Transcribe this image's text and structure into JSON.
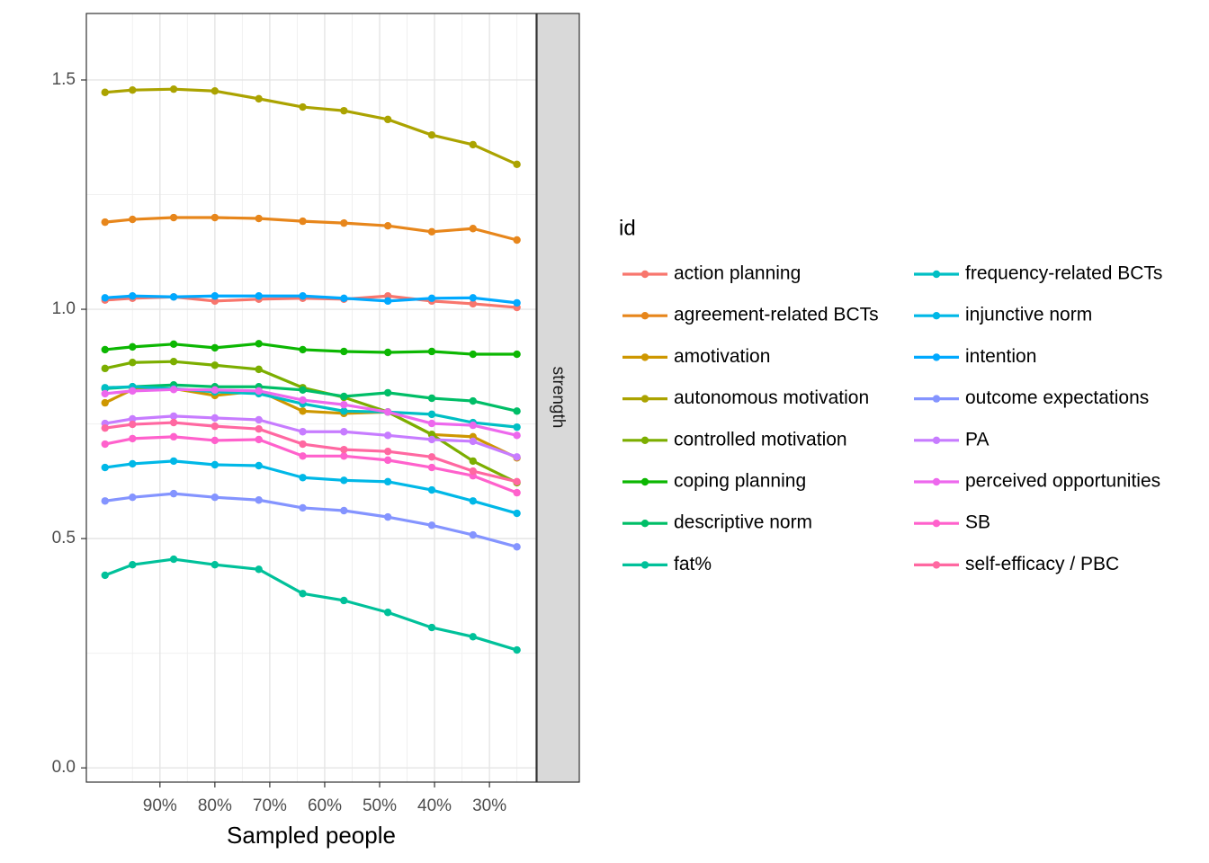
{
  "chart_data": {
    "type": "line",
    "xlabel": "Sampled people",
    "strip": "strength",
    "legend_title": "id",
    "x": [
      100,
      95,
      87.5,
      80,
      72,
      64,
      56.5,
      48.5,
      40.5,
      33,
      25
    ],
    "xlim": [
      103.4,
      21.5
    ],
    "xticks": [
      {
        "value": 90,
        "label": "90%"
      },
      {
        "value": 80,
        "label": "80%"
      },
      {
        "value": 70,
        "label": "70%"
      },
      {
        "value": 60,
        "label": "60%"
      },
      {
        "value": 50,
        "label": "50%"
      },
      {
        "value": 40,
        "label": "40%"
      },
      {
        "value": 30,
        "label": "30%"
      }
    ],
    "ylim": [
      -0.031,
      1.645
    ],
    "yticks": [
      {
        "value": 0,
        "label": "0.0"
      },
      0.5,
      {
        "value": 1,
        "label": "1.0"
      },
      1.5
    ],
    "grid": true,
    "legend": "right",
    "series": [
      {
        "name": "action planning",
        "color": "#F8766D",
        "values": [
          1.02,
          1.024,
          1.027,
          1.018,
          1.022,
          1.024,
          1.022,
          1.029,
          1.018,
          1.012,
          1.004
        ]
      },
      {
        "name": "agreement-related BCTs",
        "color": "#E7861B",
        "values": [
          1.19,
          1.196,
          1.2,
          1.2,
          1.198,
          1.192,
          1.188,
          1.182,
          1.169,
          1.176,
          1.151
        ]
      },
      {
        "name": "amotivation",
        "color": "#CE9700",
        "values": [
          0.796,
          0.825,
          0.827,
          0.812,
          0.822,
          0.778,
          0.773,
          0.776,
          0.727,
          0.722,
          0.676
        ]
      },
      {
        "name": "autonomous motivation",
        "color": "#ABA300",
        "values": [
          1.473,
          1.478,
          1.48,
          1.476,
          1.459,
          1.441,
          1.433,
          1.414,
          1.38,
          1.359,
          1.316
        ]
      },
      {
        "name": "controlled motivation",
        "color": "#7CAE00",
        "values": [
          0.871,
          0.884,
          0.886,
          0.878,
          0.869,
          0.829,
          0.808,
          0.776,
          0.727,
          0.669,
          0.622
        ]
      },
      {
        "name": "coping planning",
        "color": "#0CB702",
        "values": [
          0.912,
          0.918,
          0.924,
          0.916,
          0.925,
          0.912,
          0.908,
          0.906,
          0.908,
          0.902,
          0.902
        ]
      },
      {
        "name": "descriptive norm",
        "color": "#00BE67",
        "values": [
          0.827,
          0.831,
          0.835,
          0.831,
          0.831,
          0.824,
          0.81,
          0.818,
          0.806,
          0.8,
          0.778
        ]
      },
      {
        "name": "fat%",
        "color": "#00C19A",
        "values": [
          0.42,
          0.443,
          0.455,
          0.443,
          0.433,
          0.38,
          0.365,
          0.339,
          0.306,
          0.286,
          0.257
        ]
      },
      {
        "name": "frequency-related BCTs",
        "color": "#00BFC4",
        "values": [
          0.829,
          0.831,
          0.827,
          0.82,
          0.816,
          0.794,
          0.778,
          0.776,
          0.771,
          0.753,
          0.743
        ]
      },
      {
        "name": "injunctive norm",
        "color": "#00B8E7",
        "values": [
          0.655,
          0.663,
          0.669,
          0.661,
          0.659,
          0.633,
          0.627,
          0.624,
          0.606,
          0.582,
          0.555
        ]
      },
      {
        "name": "intention",
        "color": "#00A9FF",
        "values": [
          1.025,
          1.029,
          1.027,
          1.029,
          1.029,
          1.029,
          1.024,
          1.018,
          1.024,
          1.025,
          1.014
        ]
      },
      {
        "name": "outcome expectations",
        "color": "#8494FF",
        "values": [
          0.582,
          0.59,
          0.598,
          0.59,
          0.584,
          0.567,
          0.561,
          0.547,
          0.529,
          0.508,
          0.482
        ]
      },
      {
        "name": "PA",
        "color": "#C77CFF",
        "values": [
          0.751,
          0.761,
          0.767,
          0.763,
          0.759,
          0.733,
          0.733,
          0.725,
          0.716,
          0.712,
          0.678
        ]
      },
      {
        "name": "perceived opportunities",
        "color": "#ED68ED",
        "values": [
          0.816,
          0.822,
          0.825,
          0.824,
          0.822,
          0.802,
          0.792,
          0.776,
          0.751,
          0.747,
          0.725
        ]
      },
      {
        "name": "SB",
        "color": "#FF61CC",
        "values": [
          0.706,
          0.718,
          0.722,
          0.714,
          0.716,
          0.68,
          0.68,
          0.671,
          0.655,
          0.637,
          0.6
        ]
      },
      {
        "name": "self-efficacy / PBC",
        "color": "#FF68A1",
        "values": [
          0.741,
          0.749,
          0.753,
          0.745,
          0.739,
          0.706,
          0.694,
          0.69,
          0.678,
          0.647,
          0.624
        ]
      }
    ]
  }
}
